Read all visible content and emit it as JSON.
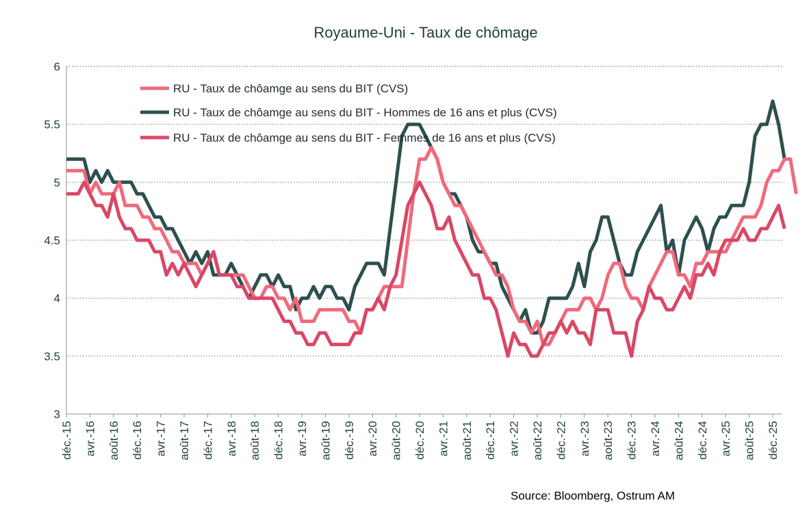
{
  "chart_data": {
    "type": "line",
    "title": "Royaume-Uni - Taux de chômage",
    "source": "Source: Bloomberg, Ostrum AM",
    "ylim": [
      3,
      6
    ],
    "yticks": [
      "3",
      "3.5",
      "4",
      "4.5",
      "5",
      "5.5",
      "6"
    ],
    "grid": "horizontal dotted",
    "legend_position": "top-left",
    "x_tick_labels": [
      "déc.-15",
      "avr.-16",
      "août-16",
      "déc.-16",
      "avr.-17",
      "août-17",
      "déc.-17",
      "avr.-18",
      "août-18",
      "déc.-18",
      "avr.-19",
      "août-19",
      "déc.-19",
      "avr.-20",
      "août-20",
      "déc.-20",
      "avr.-21",
      "août-21",
      "déc.-21",
      "avr.-22",
      "août-22",
      "déc.-22",
      "avr.-23",
      "août-23",
      "déc.-23",
      "avr.-24",
      "août-24",
      "déc.-24",
      "avr.-25",
      "août-25",
      "déc.-25"
    ],
    "x_start": "déc.-15",
    "series": [
      {
        "name": "RU - Taux de chôamge au sens du BIT (CVS)",
        "color": "#f06a7c",
        "values": [
          5.1,
          5.1,
          5.1,
          5.1,
          4.9,
          5.0,
          4.9,
          4.9,
          4.9,
          5.0,
          4.8,
          4.8,
          4.8,
          4.7,
          4.7,
          4.6,
          4.6,
          4.5,
          4.4,
          4.4,
          4.3,
          4.3,
          4.3,
          4.2,
          4.3,
          4.4,
          4.2,
          4.2,
          4.2,
          4.2,
          4.2,
          4.1,
          4.0,
          4.0,
          4.1,
          4.1,
          4.0,
          4.0,
          3.9,
          4.0,
          3.8,
          3.8,
          3.8,
          3.9,
          3.9,
          3.9,
          3.9,
          3.9,
          3.8,
          3.8,
          3.7,
          3.9,
          3.9,
          4.0,
          4.1,
          4.1,
          4.1,
          4.1,
          4.5,
          4.9,
          5.2,
          5.2,
          5.3,
          5.2,
          5.0,
          4.9,
          4.8,
          4.8,
          4.7,
          4.6,
          4.5,
          4.4,
          4.3,
          4.2,
          4.2,
          4.1,
          3.9,
          3.8,
          3.8,
          3.7,
          3.8,
          3.6,
          3.6,
          3.7,
          3.8,
          3.9,
          3.9,
          3.9,
          4.0,
          4.0,
          3.9,
          4.0,
          4.2,
          4.3,
          4.3,
          4.1,
          4.0,
          4.0,
          3.9,
          4.1,
          4.2,
          4.3,
          4.4,
          4.4,
          4.2,
          4.2,
          4.1,
          4.3,
          4.3,
          4.4,
          4.4,
          4.4,
          4.4,
          4.5,
          4.6,
          4.7,
          4.7,
          4.7,
          4.8,
          5.0,
          5.1,
          5.1,
          5.2,
          5.2,
          4.9
        ]
      },
      {
        "name": "RU - Taux de chôamge au sens du BIT - Hommes de 16 ans et plus (CVS)",
        "color": "#2e4f4f",
        "values": [
          5.2,
          5.2,
          5.2,
          5.2,
          5.0,
          5.1,
          5.0,
          5.1,
          5.0,
          5.0,
          5.0,
          5.0,
          4.9,
          4.9,
          4.8,
          4.7,
          4.7,
          4.6,
          4.6,
          4.5,
          4.4,
          4.3,
          4.4,
          4.3,
          4.4,
          4.2,
          4.2,
          4.2,
          4.3,
          4.2,
          4.1,
          4.0,
          4.1,
          4.2,
          4.2,
          4.1,
          4.2,
          4.1,
          4.1,
          3.9,
          4.0,
          4.0,
          4.1,
          4.0,
          4.1,
          4.1,
          4.0,
          4.0,
          3.9,
          4.1,
          4.2,
          4.3,
          4.3,
          4.3,
          4.2,
          4.6,
          5.0,
          5.4,
          5.5,
          5.5,
          5.5,
          5.4,
          5.3,
          5.2,
          5.0,
          4.9,
          4.9,
          4.8,
          4.7,
          4.5,
          4.4,
          4.4,
          4.3,
          4.3,
          4.1,
          4.0,
          3.9,
          3.8,
          3.9,
          3.7,
          3.7,
          3.8,
          4.0,
          4.0,
          4.0,
          4.0,
          4.1,
          4.3,
          4.1,
          4.4,
          4.5,
          4.7,
          4.7,
          4.5,
          4.3,
          4.2,
          4.2,
          4.4,
          4.5,
          4.6,
          4.7,
          4.8,
          4.4,
          4.5,
          4.2,
          4.5,
          4.6,
          4.7,
          4.6,
          4.4,
          4.6,
          4.7,
          4.7,
          4.8,
          4.8,
          4.8,
          5.0,
          5.4,
          5.5,
          5.5,
          5.7,
          5.5,
          5.2
        ]
      },
      {
        "name": "RU - Taux de chôamge au sens du BIT - Femmes de 16 ans et plus (CVS)",
        "color": "#d94866",
        "values": [
          4.9,
          4.9,
          4.9,
          5.0,
          4.9,
          4.8,
          4.8,
          4.7,
          4.9,
          4.7,
          4.6,
          4.6,
          4.5,
          4.5,
          4.5,
          4.4,
          4.4,
          4.2,
          4.3,
          4.2,
          4.3,
          4.2,
          4.1,
          4.2,
          4.3,
          4.4,
          4.2,
          4.2,
          4.2,
          4.1,
          4.1,
          4.0,
          4.0,
          4.0,
          4.0,
          4.0,
          3.9,
          3.8,
          3.8,
          3.7,
          3.7,
          3.6,
          3.6,
          3.7,
          3.7,
          3.6,
          3.6,
          3.6,
          3.6,
          3.7,
          3.7,
          3.9,
          3.9,
          4.0,
          3.9,
          4.1,
          4.2,
          4.5,
          4.8,
          4.9,
          5.0,
          4.9,
          4.8,
          4.6,
          4.6,
          4.7,
          4.5,
          4.4,
          4.3,
          4.2,
          4.2,
          4.0,
          4.0,
          3.9,
          3.7,
          3.5,
          3.7,
          3.6,
          3.6,
          3.5,
          3.5,
          3.6,
          3.7,
          3.7,
          3.8,
          3.7,
          3.8,
          3.7,
          3.7,
          3.6,
          3.9,
          3.9,
          3.9,
          3.7,
          3.7,
          3.7,
          3.5,
          3.8,
          3.9,
          4.1,
          4.0,
          4.0,
          3.9,
          3.9,
          4.0,
          4.1,
          4.0,
          4.2,
          4.2,
          4.3,
          4.2,
          4.4,
          4.5,
          4.5,
          4.5,
          4.6,
          4.5,
          4.5,
          4.6,
          4.6,
          4.7,
          4.8,
          4.6
        ]
      }
    ]
  }
}
